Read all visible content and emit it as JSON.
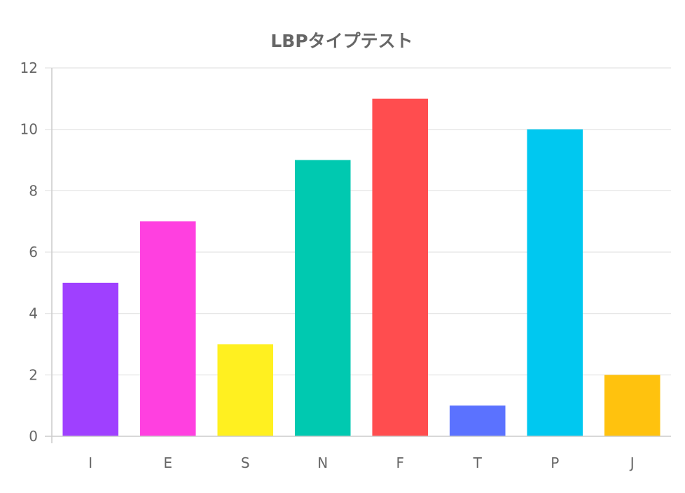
{
  "chart_data": {
    "type": "bar",
    "title": "LBPタイプテスト",
    "xlabel": "",
    "ylabel": "",
    "categories": [
      "I",
      "E",
      "S",
      "N",
      "F",
      "T",
      "P",
      "J"
    ],
    "values": [
      5,
      7,
      3,
      9,
      11,
      1,
      10,
      2
    ],
    "colors": [
      "#9f40ff",
      "#ff40e0",
      "#fff020",
      "#00c9b0",
      "#ff4d4f",
      "#5b72ff",
      "#00c8f0",
      "#ffc20e"
    ],
    "ylim": [
      0,
      12
    ],
    "yticks": [
      "0",
      "2",
      "4",
      "6",
      "8",
      "10",
      "12"
    ],
    "grid": true,
    "legend": "none"
  }
}
